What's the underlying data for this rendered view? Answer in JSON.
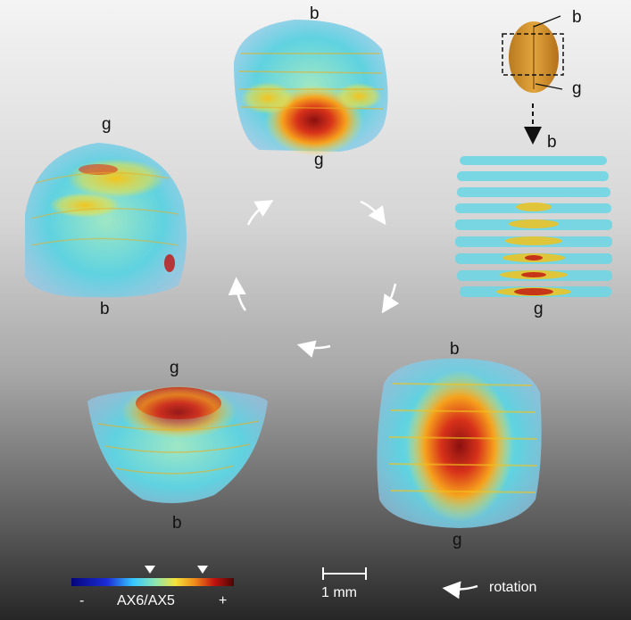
{
  "labels": {
    "top_b": "b",
    "top_g": "g",
    "left_g": "g",
    "left_b": "b",
    "right_b": "b",
    "right_g": "g",
    "br_b": "b",
    "br_g": "g",
    "bl_g": "g",
    "bl_b": "b",
    "inset_b": "b",
    "inset_g": "g"
  },
  "legend": {
    "minus": "-",
    "title": "AX6/AX5",
    "plus": "+",
    "scale_label": "1 mm",
    "rotation_label": "rotation"
  },
  "colors": {
    "low": "#0a0a8c",
    "mid_low": "#4fc3ff",
    "mid": "#7fe6c8",
    "high": "#ffc21a",
    "peak": "#c0120f",
    "max": "#4a0606"
  }
}
